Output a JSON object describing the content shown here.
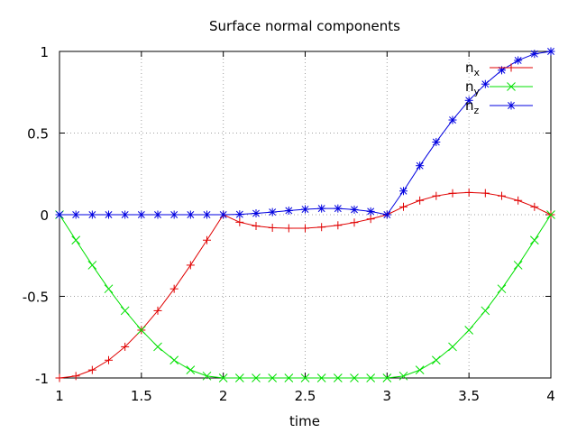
{
  "chart_data": {
    "type": "line",
    "title": "Surface normal components",
    "xlabel": "time",
    "ylabel": "",
    "xlim": [
      1,
      4
    ],
    "ylim": [
      -1,
      1
    ],
    "grid": true,
    "legend_position": "top-right",
    "x_ticks": [
      "1",
      "1.5",
      "2",
      "2.5",
      "3",
      "3.5",
      "4"
    ],
    "y_ticks": [
      "-1",
      "-0.5",
      "0",
      "0.5",
      "1"
    ],
    "x": [
      1.0,
      1.1,
      1.2,
      1.3,
      1.4,
      1.5,
      1.6,
      1.7,
      1.8,
      1.9,
      2.0,
      2.1,
      2.2,
      2.3,
      2.4,
      2.5,
      2.6,
      2.7,
      2.8,
      2.9,
      3.0,
      3.1,
      3.2,
      3.3,
      3.4,
      3.5,
      3.6,
      3.7,
      3.8,
      3.9,
      4.0
    ],
    "series": [
      {
        "name": "n",
        "subscript": "x",
        "color": "#e00000",
        "marker": "plus",
        "values": [
          -1.0,
          -0.988,
          -0.951,
          -0.891,
          -0.809,
          -0.707,
          -0.588,
          -0.454,
          -0.309,
          -0.156,
          0.0,
          -0.046,
          -0.069,
          -0.08,
          -0.083,
          -0.083,
          -0.076,
          -0.065,
          -0.048,
          -0.026,
          0.0,
          0.048,
          0.087,
          0.115,
          0.131,
          0.136,
          0.132,
          0.115,
          0.087,
          0.048,
          0.0
        ]
      },
      {
        "name": "n",
        "subscript": "y",
        "color": "#00e000",
        "marker": "cross",
        "values": [
          0.0,
          -0.156,
          -0.309,
          -0.454,
          -0.588,
          -0.707,
          -0.809,
          -0.891,
          -0.951,
          -0.988,
          -1.0,
          -1.0,
          -1.0,
          -1.0,
          -1.0,
          -1.0,
          -1.0,
          -1.0,
          -1.0,
          -1.0,
          -1.0,
          -0.988,
          -0.951,
          -0.891,
          -0.809,
          -0.707,
          -0.588,
          -0.454,
          -0.309,
          -0.156,
          0.0
        ]
      },
      {
        "name": "n",
        "subscript": "z",
        "color": "#0000e0",
        "marker": "star",
        "values": [
          0.0,
          0.0,
          0.0,
          0.0,
          0.0,
          0.0,
          0.0,
          0.0,
          0.0,
          0.0,
          0.0,
          0.002,
          0.008,
          0.016,
          0.025,
          0.033,
          0.038,
          0.038,
          0.031,
          0.02,
          0.0,
          0.145,
          0.3,
          0.445,
          0.58,
          0.7,
          0.8,
          0.885,
          0.945,
          0.985,
          1.0
        ]
      }
    ]
  }
}
